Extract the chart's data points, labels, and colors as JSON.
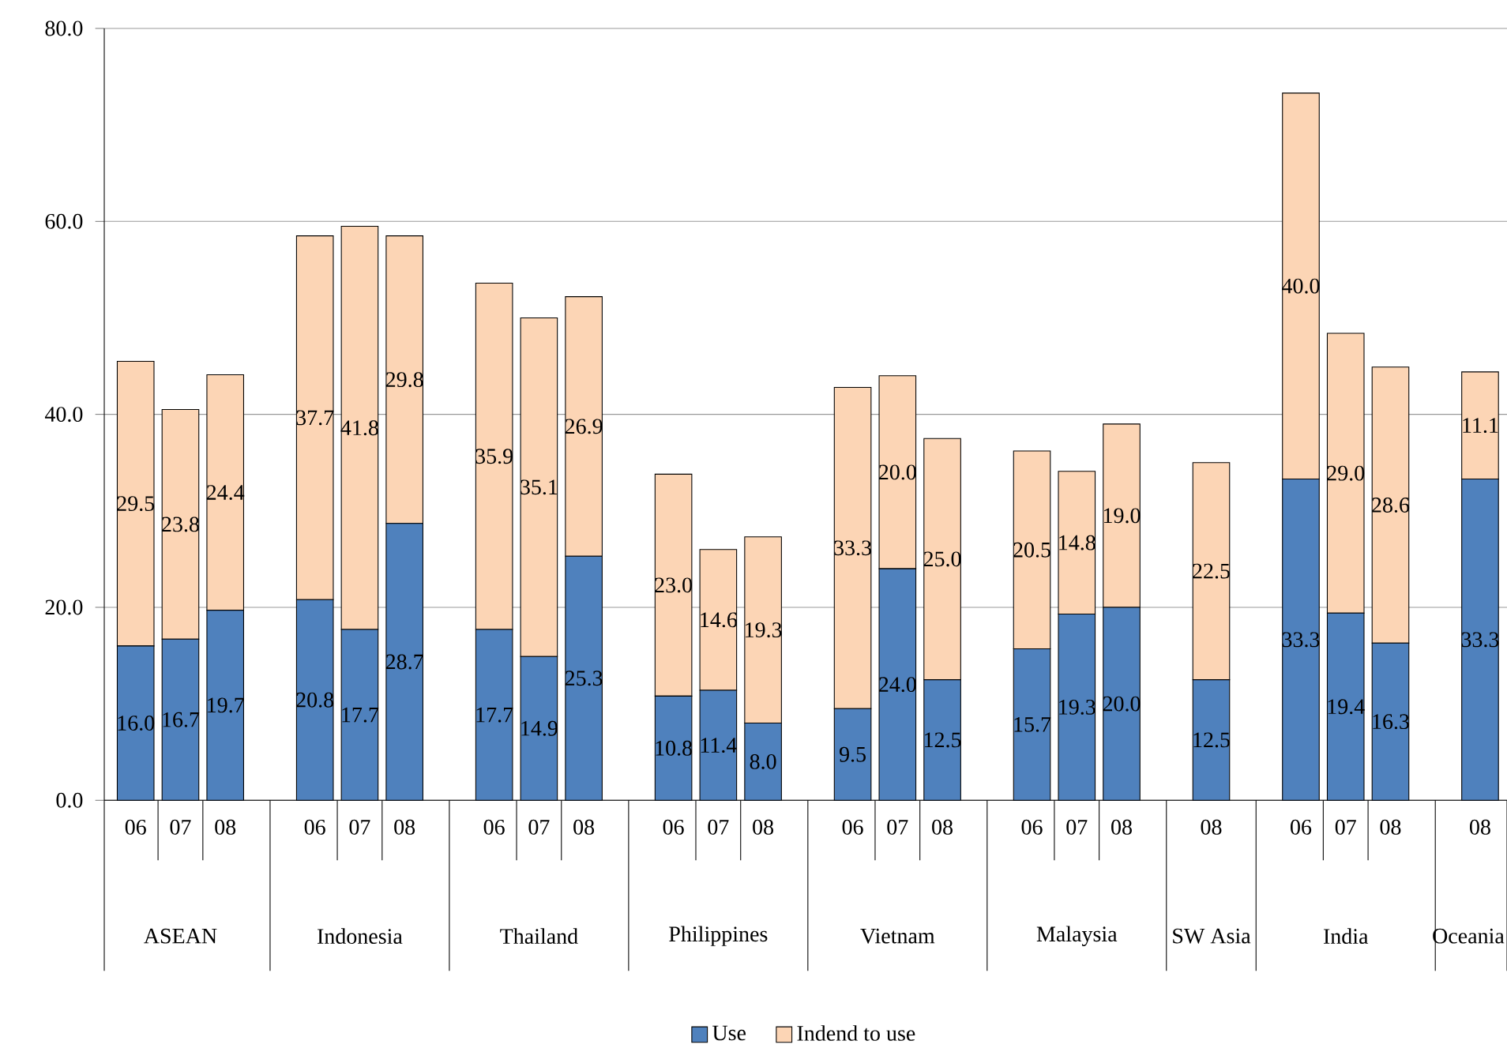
{
  "chart_data": {
    "type": "bar",
    "stacked": true,
    "categories": [
      "06",
      "07",
      "08",
      null,
      "06",
      "07",
      "08",
      null,
      "06",
      "07",
      "08",
      null,
      "06",
      "07",
      "08",
      null,
      "06",
      "07",
      "08",
      null,
      "06",
      "07",
      "08",
      null,
      "08",
      null,
      "06",
      "07",
      "08",
      null,
      "08"
    ],
    "series": [
      {
        "name": "Use",
        "color": "#4f81bd",
        "values": [
          16.0,
          16.7,
          19.7,
          null,
          20.8,
          17.7,
          28.7,
          null,
          17.7,
          14.9,
          25.3,
          null,
          10.8,
          11.4,
          8.0,
          null,
          9.5,
          24.0,
          12.5,
          null,
          15.7,
          19.3,
          20.0,
          null,
          12.5,
          null,
          33.3,
          19.4,
          16.3,
          null,
          33.3
        ],
        "value_labels": [
          "16.0",
          "16.7",
          "19.7",
          null,
          "20.8",
          "17.7",
          "28.7",
          null,
          "17.7",
          "14.9",
          "25.3",
          null,
          "10.8",
          "11.4",
          "8.0",
          null,
          "9.5",
          "24.0",
          "12.5",
          null,
          "15.7",
          "19.3",
          "20.0",
          null,
          "12.5",
          null,
          "33.3",
          "19.4",
          "16.3",
          null,
          "33.3"
        ]
      },
      {
        "name": "Indend to use",
        "color": "#fcd5b5",
        "values": [
          29.5,
          23.8,
          24.4,
          null,
          37.7,
          41.8,
          29.8,
          null,
          35.9,
          35.1,
          26.9,
          null,
          23.0,
          14.6,
          19.3,
          null,
          33.3,
          20.0,
          25.0,
          null,
          20.5,
          14.8,
          19.0,
          null,
          22.5,
          null,
          40.0,
          29.0,
          28.6,
          null,
          11.1
        ],
        "value_labels": [
          "29.5",
          "23.8",
          "24.4",
          null,
          "37.7",
          "41.8",
          "29.8",
          null,
          "35.9",
          "35.1",
          "26.9",
          null,
          "23.0",
          "14.6",
          "19.3",
          null,
          "33.3",
          "20.0",
          "25.0",
          null,
          "20.5",
          "14.8",
          "19.0",
          null,
          "22.5",
          null,
          "40.0",
          "29.0",
          "28.6",
          null,
          "11.1"
        ]
      }
    ],
    "annotations": [
      "ASEAN",
      "Indonesia",
      "Thailand",
      "Philippines",
      "Vietnam",
      "Malaysia",
      "SW Asia",
      "India",
      "Oceania"
    ],
    "ylim": [
      0,
      80
    ],
    "yticks": [
      {
        "value": 0,
        "label": "0.0"
      },
      {
        "value": 20,
        "label": "20.0"
      },
      {
        "value": 40,
        "label": "40.0"
      },
      {
        "value": 60,
        "label": "60.0"
      },
      {
        "value": 80,
        "label": "80.0"
      }
    ],
    "grid": "y",
    "legend": "bottom"
  }
}
